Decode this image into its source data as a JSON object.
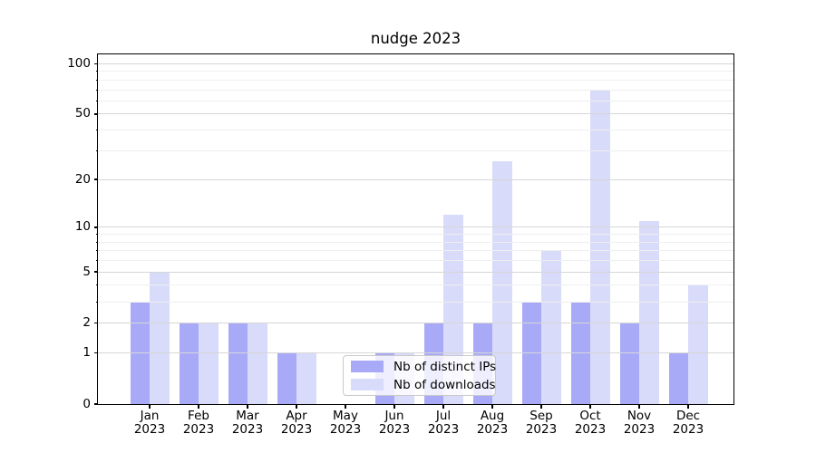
{
  "figure": {
    "title": "nudge 2023",
    "background": "#ffffff"
  },
  "legend": {
    "items": [
      {
        "label": "Nb of distinct IPs",
        "color": "#a8aaf8"
      },
      {
        "label": "Nb of downloads",
        "color": "#d9dbfa"
      }
    ]
  },
  "chart_data": {
    "type": "bar",
    "title": "nudge 2023",
    "categories": [
      "Jan 2023",
      "Feb 2023",
      "Mar 2023",
      "Apr 2023",
      "May 2023",
      "Jun 2023",
      "Jul 2023",
      "Aug 2023",
      "Sep 2023",
      "Oct 2023",
      "Nov 2023",
      "Dec 2023"
    ],
    "x_tick_lines": [
      {
        "month": "Jan",
        "year": "2023"
      },
      {
        "month": "Feb",
        "year": "2023"
      },
      {
        "month": "Mar",
        "year": "2023"
      },
      {
        "month": "Apr",
        "year": "2023"
      },
      {
        "month": "May",
        "year": "2023"
      },
      {
        "month": "Jun",
        "year": "2023"
      },
      {
        "month": "Jul",
        "year": "2023"
      },
      {
        "month": "Aug",
        "year": "2023"
      },
      {
        "month": "Sep",
        "year": "2023"
      },
      {
        "month": "Oct",
        "year": "2023"
      },
      {
        "month": "Nov",
        "year": "2023"
      },
      {
        "month": "Dec",
        "year": "2023"
      }
    ],
    "series": [
      {
        "name": "Nb of distinct IPs",
        "color": "#a8aaf8",
        "values": [
          3,
          2,
          2,
          1,
          0,
          1,
          2,
          2,
          3,
          3,
          2,
          1
        ]
      },
      {
        "name": "Nb of downloads",
        "color": "#d9dbfa",
        "values": [
          5,
          2,
          2,
          1,
          0,
          1,
          12,
          26,
          7,
          70,
          11,
          4
        ]
      }
    ],
    "yscale": "log1p",
    "xlabel": "",
    "ylabel": "",
    "y_major_ticks": [
      100,
      50,
      20,
      10,
      5,
      2,
      1,
      0
    ],
    "y_major_tick_labels": [
      "100",
      "50",
      "20",
      "10",
      "5",
      "2",
      "1",
      "0"
    ],
    "y_minor_gridlines": [
      90,
      80,
      70,
      60,
      40,
      30,
      9,
      8,
      7,
      6,
      4,
      3
    ],
    "ylim": [
      0,
      113
    ],
    "grid": "horizontal major and minor, drawn above bars",
    "legend_position": "lower center"
  },
  "colors": {
    "series_ips": "#a8aaf8",
    "series_downloads": "#d9dbfa",
    "grid_major": "#d6d6d6",
    "grid_minor": "#efefef",
    "spine": "#000000",
    "tick_text": "#000000",
    "legend_border": "#c9c9c9",
    "legend_background": "rgba(255,255,255,0.8)"
  }
}
